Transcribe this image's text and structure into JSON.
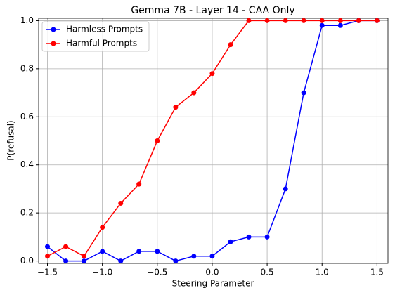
{
  "chart_data": {
    "type": "line",
    "title": "Gemma 7B - Layer 14 - CAA Only",
    "x_label": "Steering Parameter",
    "y_label": "P(refusal)",
    "x": [
      -1.5,
      -1.333,
      -1.167,
      -1.0,
      -0.833,
      -0.667,
      -0.5,
      -0.333,
      -0.167,
      0.0,
      0.167,
      0.333,
      0.5,
      0.667,
      0.833,
      1.0,
      1.167,
      1.333,
      1.5
    ],
    "series": [
      {
        "name": "Harmless Prompts",
        "color": "#0000ff",
        "values": [
          0.06,
          0,
          0,
          0.04,
          0,
          0.04,
          0.04,
          0,
          0.02,
          0.02,
          0.08,
          0.1,
          0.1,
          0.3,
          0.7,
          0.98,
          0.98,
          1.0,
          1.0
        ]
      },
      {
        "name": "Harmful Prompts",
        "color": "#ff0000",
        "values": [
          0.02,
          0.06,
          0.02,
          0.14,
          0.24,
          0.32,
          0.5,
          0.64,
          0.7,
          0.78,
          0.9,
          1.0,
          1.0,
          1.0,
          1.0,
          1.0,
          1.0,
          1.0,
          1.0
        ]
      }
    ],
    "xlim": [
      -1.58,
      1.6
    ],
    "ylim": [
      -0.01,
      1.01
    ],
    "xticks": [
      {
        "value": -1.5,
        "label": "−1.5"
      },
      {
        "value": -1.0,
        "label": "−1.0"
      },
      {
        "value": -0.5,
        "label": "−0.5"
      },
      {
        "value": 0.0,
        "label": "0.0"
      },
      {
        "value": 0.5,
        "label": "0.5"
      },
      {
        "value": 1.0,
        "label": "1.0"
      },
      {
        "value": 1.5,
        "label": "1.5"
      }
    ],
    "yticks": [
      {
        "value": 0.0,
        "label": "0.0"
      },
      {
        "value": 0.2,
        "label": "0.2"
      },
      {
        "value": 0.4,
        "label": "0.4"
      },
      {
        "value": 0.6,
        "label": "0.6"
      },
      {
        "value": 0.8,
        "label": "0.8"
      },
      {
        "value": 1.0,
        "label": "1.0"
      }
    ],
    "grid": true,
    "legend": "upper-left"
  }
}
